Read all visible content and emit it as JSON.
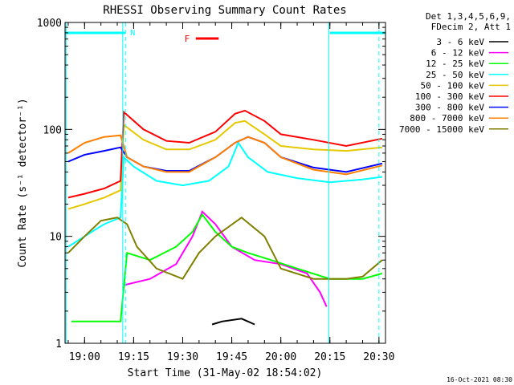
{
  "chart_data": {
    "type": "line",
    "title": "RHESSI Observing Summary Count Rates",
    "xlabel": "Start Time (31-May-02 18:54:02)",
    "ylabel": "Count Rate (s⁻¹ detector⁻¹)",
    "yscale": "log",
    "ylim": [
      1,
      1000
    ],
    "xlim": [
      "18:54:02",
      "20:32:00"
    ],
    "x_ticks": [
      "19:00",
      "19:15",
      "19:30",
      "19:45",
      "20:00",
      "20:15",
      "20:30"
    ],
    "y_ticks": [
      "1",
      "10",
      "100",
      "1000"
    ],
    "legend_header": [
      "Det 1,3,4,5,6,9,",
      "FDecim 2, Att 1"
    ],
    "legend_position": "right",
    "annotations": {
      "flare_flag": "F",
      "night_flag": "N",
      "night_intervals": [
        [
          "18:54:02",
          "19:12:30"
        ],
        [
          "20:15:00",
          "20:32:00"
        ]
      ],
      "flare_interval": [
        "19:34:00",
        "19:41:00"
      ],
      "vertical_dashed_lines": [
        "19:12:30",
        "20:30:00"
      ],
      "vertical_solid_lines": [
        "18:54:20",
        "19:11:40",
        "20:14:40"
      ]
    },
    "series": [
      {
        "name": "3 - 6 keV",
        "color": "#000000",
        "points": [
          [
            "19:39",
            1.5
          ],
          [
            "19:42",
            1.6
          ],
          [
            "19:48",
            1.7
          ],
          [
            "19:52",
            1.5
          ]
        ]
      },
      {
        "name": "6 - 12 keV",
        "color": "#ff00ff",
        "points": [
          [
            "19:12",
            3.5
          ],
          [
            "19:20",
            4.0
          ],
          [
            "19:28",
            5.5
          ],
          [
            "19:33",
            10
          ],
          [
            "19:36",
            17
          ],
          [
            "19:40",
            13
          ],
          [
            "19:45",
            8
          ],
          [
            "19:52",
            6
          ],
          [
            "20:00",
            5.5
          ],
          [
            "20:08",
            4.5
          ],
          [
            "20:12",
            3.0
          ],
          [
            "20:14",
            2.2
          ]
        ]
      },
      {
        "name": "12 - 25 keV",
        "color": "#00ff00",
        "points": [
          [
            "18:56",
            1.6
          ],
          [
            "19:05",
            1.6
          ],
          [
            "19:11",
            1.6
          ],
          [
            "19:13",
            7
          ],
          [
            "19:20",
            6
          ],
          [
            "19:28",
            8
          ],
          [
            "19:33",
            11
          ],
          [
            "19:36",
            16
          ],
          [
            "19:40",
            11
          ],
          [
            "19:45",
            8
          ],
          [
            "19:50",
            7
          ],
          [
            "19:57",
            6
          ],
          [
            "20:05",
            5
          ],
          [
            "20:15",
            4
          ],
          [
            "20:25",
            4
          ],
          [
            "20:31",
            4.5
          ]
        ]
      },
      {
        "name": "25 - 50 keV",
        "color": "#00ffff",
        "points": [
          [
            "18:55",
            8
          ],
          [
            "19:00",
            10
          ],
          [
            "19:06",
            13
          ],
          [
            "19:11",
            15
          ],
          [
            "19:12",
            55
          ],
          [
            "19:15",
            45
          ],
          [
            "19:22",
            33
          ],
          [
            "19:30",
            30
          ],
          [
            "19:38",
            33
          ],
          [
            "19:44",
            45
          ],
          [
            "19:47",
            75
          ],
          [
            "19:50",
            55
          ],
          [
            "19:56",
            40
          ],
          [
            "20:05",
            35
          ],
          [
            "20:15",
            32
          ],
          [
            "20:25",
            34
          ],
          [
            "20:31",
            36
          ]
        ]
      },
      {
        "name": "50 - 100 keV",
        "color": "#e5c800",
        "points": [
          [
            "18:55",
            18
          ],
          [
            "19:00",
            20
          ],
          [
            "19:06",
            23
          ],
          [
            "19:11",
            27
          ],
          [
            "19:12",
            110
          ],
          [
            "19:18",
            80
          ],
          [
            "19:25",
            65
          ],
          [
            "19:32",
            65
          ],
          [
            "19:40",
            80
          ],
          [
            "19:46",
            115
          ],
          [
            "19:49",
            120
          ],
          [
            "19:55",
            90
          ],
          [
            "20:00",
            70
          ],
          [
            "20:10",
            65
          ],
          [
            "20:20",
            63
          ],
          [
            "20:31",
            68
          ]
        ]
      },
      {
        "name": "100 - 300 keV",
        "color": "#ff0000",
        "points": [
          [
            "18:55",
            23
          ],
          [
            "19:00",
            25
          ],
          [
            "19:06",
            28
          ],
          [
            "19:11",
            33
          ],
          [
            "19:12",
            145
          ],
          [
            "19:18",
            100
          ],
          [
            "19:25",
            78
          ],
          [
            "19:32",
            75
          ],
          [
            "19:40",
            95
          ],
          [
            "19:46",
            140
          ],
          [
            "19:49",
            150
          ],
          [
            "19:55",
            120
          ],
          [
            "20:00",
            90
          ],
          [
            "20:10",
            80
          ],
          [
            "20:20",
            70
          ],
          [
            "20:31",
            82
          ]
        ]
      },
      {
        "name": "300 - 800 keV",
        "color": "#0000ff",
        "points": [
          [
            "18:55",
            50
          ],
          [
            "19:00",
            58
          ],
          [
            "19:06",
            63
          ],
          [
            "19:11",
            68
          ],
          [
            "19:13",
            55
          ],
          [
            "19:18",
            45
          ],
          [
            "19:25",
            41
          ],
          [
            "19:32",
            41
          ],
          [
            "19:40",
            55
          ],
          [
            "19:46",
            75
          ],
          [
            "19:50",
            85
          ],
          [
            "19:55",
            75
          ],
          [
            "20:00",
            55
          ],
          [
            "20:10",
            44
          ],
          [
            "20:20",
            40
          ],
          [
            "20:31",
            48
          ]
        ]
      },
      {
        "name": "800 - 7000 keV",
        "color": "#ff8000",
        "points": [
          [
            "18:55",
            60
          ],
          [
            "19:00",
            75
          ],
          [
            "19:06",
            85
          ],
          [
            "19:11",
            88
          ],
          [
            "19:13",
            55
          ],
          [
            "19:18",
            45
          ],
          [
            "19:25",
            40
          ],
          [
            "19:32",
            40
          ],
          [
            "19:40",
            55
          ],
          [
            "19:46",
            75
          ],
          [
            "19:50",
            85
          ],
          [
            "19:55",
            75
          ],
          [
            "20:00",
            55
          ],
          [
            "20:10",
            42
          ],
          [
            "20:20",
            38
          ],
          [
            "20:31",
            46
          ]
        ]
      },
      {
        "name": "7000 - 15000 keV",
        "color": "#808000",
        "points": [
          [
            "18:55",
            7
          ],
          [
            "19:00",
            10
          ],
          [
            "19:05",
            14
          ],
          [
            "19:10",
            15
          ],
          [
            "19:13",
            13
          ],
          [
            "19:16",
            8
          ],
          [
            "19:22",
            5
          ],
          [
            "19:30",
            4
          ],
          [
            "19:35",
            7
          ],
          [
            "19:40",
            10
          ],
          [
            "19:48",
            15
          ],
          [
            "19:55",
            10
          ],
          [
            "20:00",
            5
          ],
          [
            "20:10",
            4
          ],
          [
            "20:20",
            4
          ],
          [
            "20:25",
            4.2
          ],
          [
            "20:31",
            6
          ]
        ]
      }
    ]
  },
  "footer": {
    "timestamp": "16-Oct-2021 08:30"
  }
}
